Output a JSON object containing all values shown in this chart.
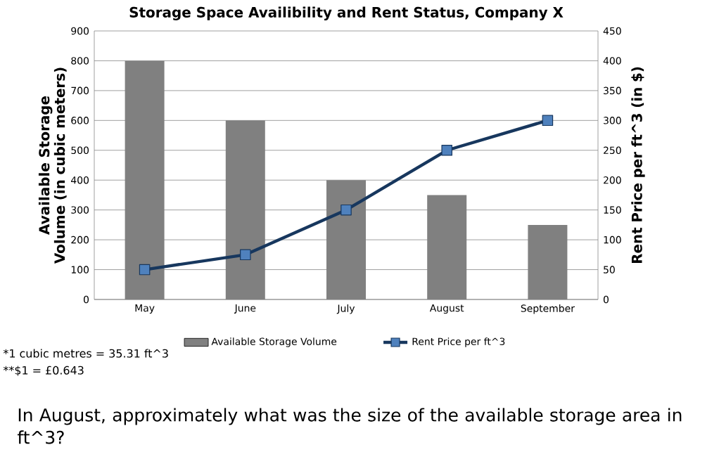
{
  "chart_data": {
    "type": "bar",
    "title": "Storage Space Availibility and Rent Status, Company X",
    "ylabel": "Available Storage Volume (in cubic meters)",
    "y2label": "Rent Price per ft^3 (in $)",
    "categories": [
      "May",
      "June",
      "July",
      "August",
      "September"
    ],
    "series": [
      {
        "name": "Available Storage Volume",
        "color": "#808080",
        "values": [
          800,
          600,
          400,
          350,
          250
        ]
      },
      {
        "name": "Rent Price per ft^3",
        "type": "line",
        "axis": "y2",
        "color": "#17375e",
        "marker": "square",
        "values": [
          50,
          75,
          150,
          250,
          300
        ]
      }
    ],
    "ylim": [
      0,
      900
    ],
    "yticks": [
      0,
      100,
      200,
      300,
      400,
      500,
      600,
      700,
      800,
      900
    ],
    "y2lim": [
      0,
      450
    ],
    "y2ticks": [
      0,
      50,
      100,
      150,
      200,
      250,
      300,
      350,
      400,
      450
    ],
    "grid": "y",
    "legend": "bottom",
    "annotations": [
      "*1 cubic metres = 35.31 ft^3",
      "**$1 = £0.643",
      "In August, approximately what was the size of the available storage area in ft^3?"
    ]
  }
}
